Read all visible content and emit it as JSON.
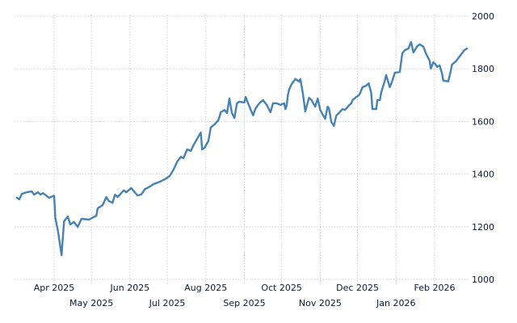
{
  "chart_data": {
    "type": "line",
    "title": "",
    "xlabel": "",
    "ylabel": "",
    "ylim": [
      1000,
      2000
    ],
    "xlim": [
      "2025-03-02",
      "2026-02-27"
    ],
    "grid": true,
    "legend": "none",
    "line_color": "#4682b4",
    "y_ticks": [
      "1000",
      "1200",
      "1400",
      "1600",
      "1800",
      "2000"
    ],
    "x_ticks": [
      {
        "date": "2025-04-01",
        "label": "Apr 2025"
      },
      {
        "date": "2025-05-01",
        "label": "May 2025"
      },
      {
        "date": "2025-06-01",
        "label": "Jun 2025"
      },
      {
        "date": "2025-07-01",
        "label": "Jul 2025"
      },
      {
        "date": "2025-08-01",
        "label": "Aug 2025"
      },
      {
        "date": "2025-09-01",
        "label": "Sep 2025"
      },
      {
        "date": "2025-10-01",
        "label": "Oct 2025"
      },
      {
        "date": "2025-11-01",
        "label": "Nov 2025"
      },
      {
        "date": "2025-12-01",
        "label": "Dec 2025"
      },
      {
        "date": "2026-01-01",
        "label": "Jan 2026"
      },
      {
        "date": "2026-02-01",
        "label": "Feb 2026"
      }
    ],
    "series": [
      {
        "x": [
          "2025-03-02",
          "2025-03-04",
          "2025-03-06",
          "2025-03-10",
          "2025-03-14",
          "2025-03-16",
          "2025-03-19",
          "2025-03-21",
          "2025-03-23",
          "2025-03-28",
          "2025-04-01",
          "2025-04-02",
          "2025-04-04",
          "2025-04-07",
          "2025-04-09",
          "2025-04-12",
          "2025-04-14",
          "2025-04-17",
          "2025-04-20",
          "2025-04-23",
          "2025-04-29",
          "2025-05-05",
          "2025-05-06",
          "2025-05-10",
          "2025-05-13",
          "2025-05-15",
          "2025-05-18",
          "2025-05-20",
          "2025-05-22",
          "2025-05-27",
          "2025-05-29",
          "2025-06-02",
          "2025-06-07",
          "2025-06-10",
          "2025-06-13",
          "2025-06-16",
          "2025-06-20",
          "2025-06-25",
          "2025-06-29",
          "2025-07-03",
          "2025-07-06",
          "2025-07-09",
          "2025-07-12",
          "2025-07-14",
          "2025-07-17",
          "2025-07-20",
          "2025-07-22",
          "2025-07-25",
          "2025-07-28",
          "2025-07-29",
          "2025-07-31",
          "2025-08-03",
          "2025-08-05",
          "2025-08-08",
          "2025-08-11",
          "2025-08-13",
          "2025-08-16",
          "2025-08-18",
          "2025-08-20",
          "2025-08-22",
          "2025-08-24",
          "2025-08-26",
          "2025-08-28",
          "2025-09-01",
          "2025-09-02",
          "2025-09-04",
          "2025-09-08",
          "2025-09-10",
          "2025-09-13",
          "2025-09-16",
          "2025-09-19",
          "2025-09-22",
          "2025-09-24",
          "2025-09-27",
          "2025-09-30",
          "2025-10-03",
          "2025-10-04",
          "2025-10-05",
          "2025-10-06",
          "2025-10-07",
          "2025-10-09",
          "2025-10-12",
          "2025-10-15",
          "2025-10-16",
          "2025-10-18",
          "2025-10-20",
          "2025-10-23",
          "2025-10-25",
          "2025-10-28",
          "2025-10-30",
          "2025-11-01",
          "2025-11-03",
          "2025-11-05",
          "2025-11-07",
          "2025-11-08",
          "2025-11-10",
          "2025-11-12",
          "2025-11-14",
          "2025-11-16",
          "2025-11-19",
          "2025-11-21",
          "2025-11-24",
          "2025-11-26",
          "2025-11-27",
          "2025-11-30",
          "2025-12-02",
          "2025-12-03",
          "2025-12-05",
          "2025-12-08",
          "2025-12-10",
          "2025-12-12",
          "2025-12-13",
          "2025-12-16",
          "2025-12-17",
          "2025-12-19",
          "2025-12-20",
          "2025-12-23",
          "2025-12-24",
          "2025-12-27",
          "2025-12-29",
          "2025-12-31",
          "2026-01-04",
          "2026-01-06",
          "2026-01-08",
          "2026-01-11",
          "2026-01-13",
          "2026-01-15",
          "2026-01-18",
          "2026-01-20",
          "2026-01-23",
          "2026-01-25",
          "2026-01-28",
          "2026-01-29",
          "2026-01-31",
          "2026-02-02",
          "2026-02-03",
          "2026-02-05",
          "2026-02-07",
          "2026-02-08",
          "2026-02-12",
          "2026-02-14",
          "2026-02-15",
          "2026-02-18",
          "2026-02-24",
          "2026-02-25",
          "2026-02-27"
        ],
        "values": [
          1310,
          1304,
          1325,
          1331,
          1334,
          1322,
          1331,
          1322,
          1328,
          1310,
          1318,
          1233,
          1187,
          1092,
          1221,
          1239,
          1209,
          1218,
          1199,
          1230,
          1227,
          1242,
          1270,
          1282,
          1313,
          1298,
          1291,
          1322,
          1313,
          1338,
          1331,
          1347,
          1319,
          1322,
          1343,
          1350,
          1362,
          1371,
          1380,
          1393,
          1417,
          1448,
          1466,
          1460,
          1494,
          1488,
          1509,
          1534,
          1558,
          1494,
          1500,
          1525,
          1577,
          1589,
          1604,
          1635,
          1644,
          1632,
          1687,
          1632,
          1613,
          1669,
          1675,
          1672,
          1693,
          1669,
          1623,
          1650,
          1669,
          1681,
          1663,
          1635,
          1669,
          1669,
          1663,
          1669,
          1647,
          1660,
          1700,
          1721,
          1742,
          1761,
          1752,
          1761,
          1709,
          1638,
          1690,
          1681,
          1656,
          1687,
          1644,
          1626,
          1610,
          1656,
          1650,
          1598,
          1583,
          1623,
          1632,
          1647,
          1644,
          1660,
          1669,
          1681,
          1693,
          1699,
          1706,
          1730,
          1736,
          1745,
          1709,
          1647,
          1647,
          1681,
          1681,
          1709,
          1755,
          1776,
          1730,
          1755,
          1785,
          1788,
          1859,
          1871,
          1877,
          1902,
          1862,
          1886,
          1893,
          1884,
          1859,
          1831,
          1801,
          1825,
          1816,
          1807,
          1813,
          1782,
          1755,
          1752,
          1792,
          1816,
          1828,
          1865,
          1871,
          1877
        ]
      }
    ]
  }
}
